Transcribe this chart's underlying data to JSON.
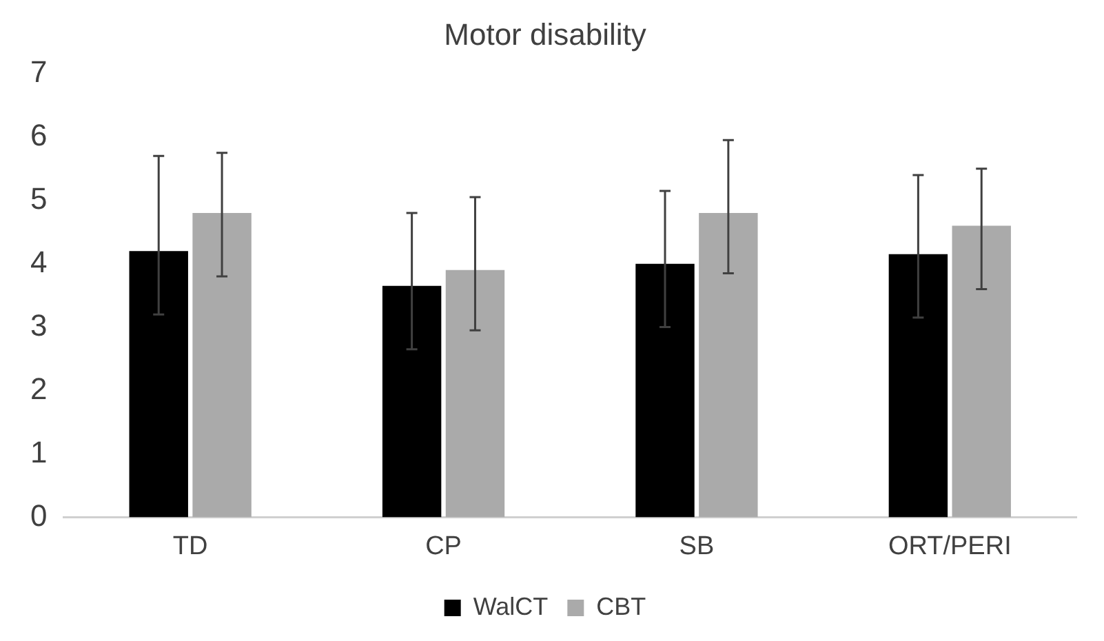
{
  "chart_data": {
    "type": "bar",
    "title": "Motor disability",
    "categories": [
      "TD",
      "CP",
      "SB",
      "ORT/PERI"
    ],
    "series": [
      {
        "name": "WalCT",
        "color": "#000000",
        "values": [
          4.2,
          3.65,
          4.0,
          4.15
        ],
        "errors": [
          [
            3.2,
            5.7
          ],
          [
            2.65,
            4.8
          ],
          [
            3.0,
            5.15
          ],
          [
            3.15,
            5.4
          ]
        ]
      },
      {
        "name": "CBT",
        "color": "#aaaaaa",
        "values": [
          4.8,
          3.9,
          4.8,
          4.6
        ],
        "errors": [
          [
            3.8,
            5.75
          ],
          [
            2.95,
            5.05
          ],
          [
            3.85,
            5.95
          ],
          [
            3.6,
            5.5
          ]
        ]
      }
    ],
    "ylim": [
      0,
      7
    ],
    "yticks": [
      0,
      1,
      2,
      3,
      4,
      5,
      6,
      7
    ],
    "grid": false,
    "legend": "bottom"
  }
}
